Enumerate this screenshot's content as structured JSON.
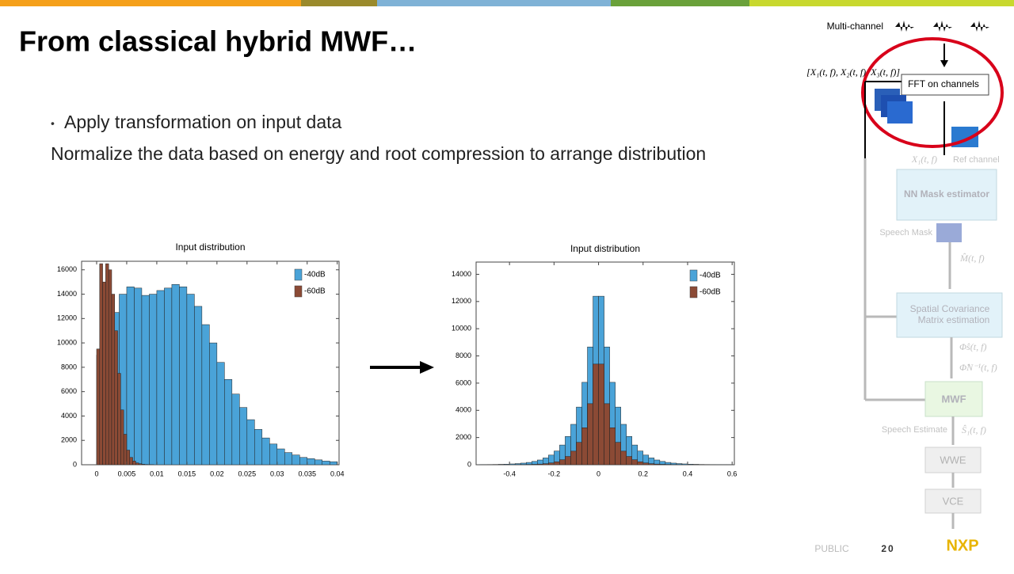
{
  "slide": {
    "title": "From classical hybrid MWF…",
    "bullet": "Apply transformation on input data",
    "text": "Normalize the data based on energy and root compression to arrange distribution",
    "footer": {
      "label": "PUBLIC",
      "page": "20",
      "logo": "NXP"
    }
  },
  "diagram": {
    "input": "Multi-channel",
    "channels": "[X₁(t, f), X₂(t, f), X₃(t, f)]",
    "fft": "FFT on channels",
    "ref_signal": "X₁(t, f)",
    "ref": "Ref channel",
    "nn": "NN Mask estimator",
    "mask": "Speech Mask",
    "mask_signal": "M̂(t, f)",
    "scm": [
      "Spatial Covariance",
      "Matrix estimation"
    ],
    "phi_s": "Φ̂s(t, f)",
    "phi_n": "Φ̂N⁻¹(t, f)",
    "mwf": "MWF",
    "estimate": "Speech Estimate",
    "estimate_signal": "Ŝ₁(t, f)",
    "wwe": "WWE",
    "vce": "VCE"
  },
  "chart_data": [
    {
      "type": "histogram",
      "title": "Input distribution",
      "xlim": [
        -0.0025,
        0.0403
      ],
      "ylim": [
        0,
        16700
      ],
      "xticks": [
        0,
        0.005,
        0.01,
        0.015,
        0.02,
        0.025,
        0.03,
        0.035,
        0.04
      ],
      "yticks": [
        0,
        2000,
        4000,
        6000,
        8000,
        10000,
        12000,
        14000,
        16000
      ],
      "legend": "upper right",
      "series": [
        {
          "name": "-40dB",
          "color": "#4aa3d8",
          "bins": [
            0,
            0.00125,
            0.0025,
            0.00375,
            0.005,
            0.00625,
            0.0075,
            0.00875,
            0.01,
            0.01125,
            0.0125,
            0.01375,
            0.015,
            0.01625,
            0.0175,
            0.01875,
            0.02,
            0.02125,
            0.0225,
            0.02375,
            0.025,
            0.02625,
            0.0275,
            0.02875,
            0.03,
            0.03125,
            0.0325,
            0.03375,
            0.035,
            0.03625,
            0.0375,
            0.03875,
            0.04
          ],
          "values": [
            9000,
            10500,
            12500,
            14000,
            14600,
            14500,
            13900,
            14000,
            14300,
            14500,
            14800,
            14600,
            14000,
            13000,
            11500,
            10000,
            8400,
            7000,
            5800,
            4700,
            3700,
            2900,
            2200,
            1700,
            1300,
            1000,
            800,
            600,
            500,
            400,
            300,
            250
          ]
        },
        {
          "name": "-60dB",
          "color": "#8b4a35",
          "bins": [
            0,
            0.0005,
            0.001,
            0.0015,
            0.002,
            0.0025,
            0.003,
            0.0035,
            0.004,
            0.0045,
            0.005,
            0.0055,
            0.006,
            0.0065,
            0.007,
            0.0075,
            0.008,
            0.0085,
            0.009,
            0.0095,
            0.01
          ],
          "values": [
            9500,
            16500,
            15000,
            16500,
            16000,
            14000,
            11000,
            7500,
            4500,
            2500,
            1200,
            600,
            300,
            150,
            80,
            40,
            20,
            10,
            5,
            0
          ]
        }
      ]
    },
    {
      "type": "histogram",
      "title": "Input distribution",
      "xlim": [
        -0.55,
        0.61
      ],
      "ylim": [
        0,
        14900
      ],
      "xticks": [
        -0.4,
        -0.2,
        0,
        0.2,
        0.4,
        0.6
      ],
      "yticks": [
        0,
        2000,
        4000,
        6000,
        8000,
        10000,
        12000,
        14000
      ],
      "legend": "upper right",
      "series": [
        {
          "name": "-40dB",
          "color": "#4aa3d8",
          "bins": [
            -0.55,
            -0.525,
            -0.5,
            -0.475,
            -0.45,
            -0.425,
            -0.4,
            -0.375,
            -0.35,
            -0.325,
            -0.3,
            -0.275,
            -0.25,
            -0.225,
            -0.2,
            -0.175,
            -0.15,
            -0.125,
            -0.1,
            -0.075,
            -0.05,
            -0.025,
            0,
            0.025,
            0.05,
            0.075,
            0.1,
            0.125,
            0.15,
            0.175,
            0.2,
            0.225,
            0.25,
            0.275,
            0.3,
            0.325,
            0.35,
            0.375,
            0.4,
            0.425,
            0.45,
            0.475,
            0.5,
            0.525,
            0.55,
            0.575,
            0.6
          ],
          "values": [
            7,
            10,
            15,
            20,
            30,
            40,
            60,
            85,
            120,
            170,
            245,
            350,
            500,
            710,
            1010,
            1450,
            2080,
            2970,
            4240,
            6060,
            8660,
            12390,
            12390,
            8660,
            6060,
            4240,
            2970,
            2080,
            1450,
            1010,
            710,
            500,
            350,
            245,
            170,
            120,
            85,
            60,
            40,
            30,
            20,
            15,
            10,
            7,
            5,
            3
          ]
        },
        {
          "name": "-60dB",
          "color": "#8b4a35",
          "bins": [
            -0.55,
            -0.525,
            -0.5,
            -0.475,
            -0.45,
            -0.425,
            -0.4,
            -0.375,
            -0.35,
            -0.325,
            -0.3,
            -0.275,
            -0.25,
            -0.225,
            -0.2,
            -0.175,
            -0.15,
            -0.125,
            -0.1,
            -0.075,
            -0.05,
            -0.025,
            0,
            0.025,
            0.05,
            0.075,
            0.1,
            0.125,
            0.15,
            0.175,
            0.2,
            0.225,
            0.25,
            0.275,
            0.3,
            0.325,
            0.35,
            0.375,
            0.4,
            0.425,
            0.45,
            0.475,
            0.5,
            0.525,
            0.55,
            0.575,
            0.6
          ],
          "values": [
            0,
            0,
            0,
            0,
            0,
            0,
            0,
            5,
            10,
            20,
            30,
            50,
            80,
            135,
            220,
            370,
            610,
            1000,
            1650,
            2720,
            4490,
            7400,
            7400,
            4490,
            2720,
            1650,
            1000,
            610,
            370,
            220,
            135,
            80,
            50,
            30,
            20,
            10,
            5,
            0,
            0,
            0,
            0,
            0,
            0,
            0,
            0,
            0
          ]
        }
      ]
    }
  ]
}
